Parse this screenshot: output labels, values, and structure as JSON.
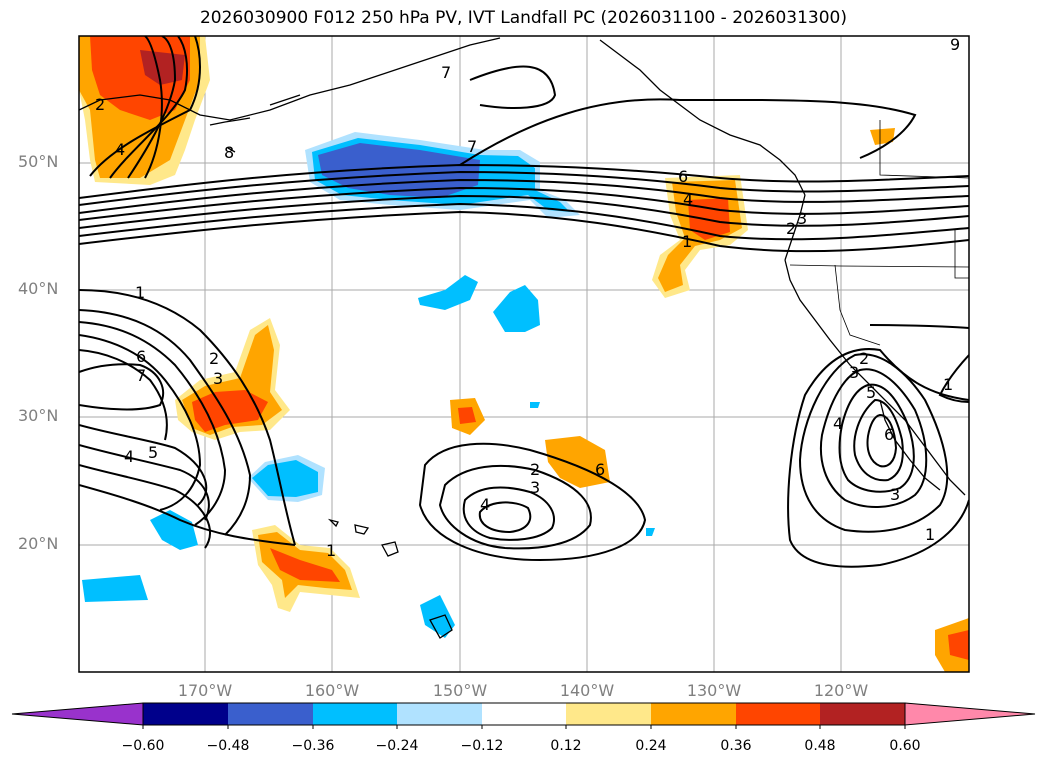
{
  "title": "2026030900 F012 250 hPa PV, IVT Landfall PC (2026031100 - 2026031300)",
  "map": {
    "lat_labels": [
      "50°N",
      "40°N",
      "30°N",
      "20°N"
    ],
    "lon_labels": [
      "170°W",
      "160°W",
      "150°W",
      "140°W",
      "130°W",
      "120°W"
    ],
    "contour_labels": [
      "1",
      "2",
      "3",
      "4",
      "5",
      "6",
      "7",
      "1",
      "2",
      "3",
      "4",
      "6",
      "7",
      "1",
      "2",
      "3",
      "4",
      "2",
      "3",
      "4",
      "5",
      "6",
      "1",
      "3",
      "1",
      "2",
      "4",
      "8",
      "6",
      "9",
      "7"
    ]
  },
  "colorbar": {
    "colors": [
      "#9932cc",
      "#00008b",
      "#3a5fcd",
      "#00bfff",
      "#b0e2ff",
      "#ffffff",
      "#ffe88a",
      "#ffa500",
      "#ff4500",
      "#b22222",
      "#ff88aa"
    ],
    "tick_labels": [
      "−0.60",
      "−0.48",
      "−0.36",
      "−0.24",
      "−0.12",
      "0.12",
      "0.24",
      "0.36",
      "0.48",
      "0.60"
    ]
  }
}
